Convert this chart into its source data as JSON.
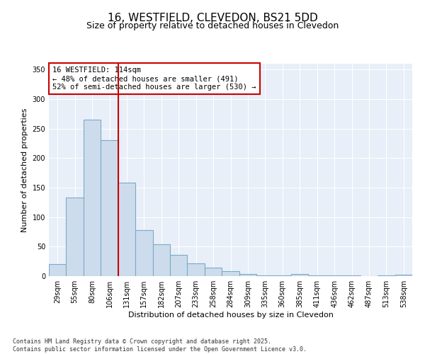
{
  "title_line1": "16, WESTFIELD, CLEVEDON, BS21 5DD",
  "title_line2": "Size of property relative to detached houses in Clevedon",
  "xlabel": "Distribution of detached houses by size in Clevedon",
  "ylabel": "Number of detached properties",
  "categories": [
    "29sqm",
    "55sqm",
    "80sqm",
    "106sqm",
    "131sqm",
    "157sqm",
    "182sqm",
    "207sqm",
    "233sqm",
    "258sqm",
    "284sqm",
    "309sqm",
    "335sqm",
    "360sqm",
    "385sqm",
    "411sqm",
    "436sqm",
    "462sqm",
    "487sqm",
    "513sqm",
    "538sqm"
  ],
  "values": [
    20,
    133,
    265,
    230,
    158,
    78,
    54,
    36,
    22,
    14,
    9,
    4,
    1,
    1,
    4,
    1,
    1,
    1,
    0,
    1,
    2
  ],
  "bar_color": "#cddcec",
  "bar_edge_color": "#7aaac8",
  "vline_x": 3.5,
  "vline_color": "#cc0000",
  "annotation_text": "16 WESTFIELD: 114sqm\n← 48% of detached houses are smaller (491)\n52% of semi-detached houses are larger (530) →",
  "annotation_box_color": "#cc0000",
  "ylim": [
    0,
    360
  ],
  "yticks": [
    0,
    50,
    100,
    150,
    200,
    250,
    300,
    350
  ],
  "fig_bg_color": "#ffffff",
  "plot_bg_color": "#e8eff8",
  "grid_color": "#ffffff",
  "footer_text": "Contains HM Land Registry data © Crown copyright and database right 2025.\nContains public sector information licensed under the Open Government Licence v3.0.",
  "title_fontsize": 11,
  "subtitle_fontsize": 9,
  "axis_label_fontsize": 8,
  "tick_fontsize": 7,
  "annotation_fontsize": 7.5,
  "footer_fontsize": 6
}
